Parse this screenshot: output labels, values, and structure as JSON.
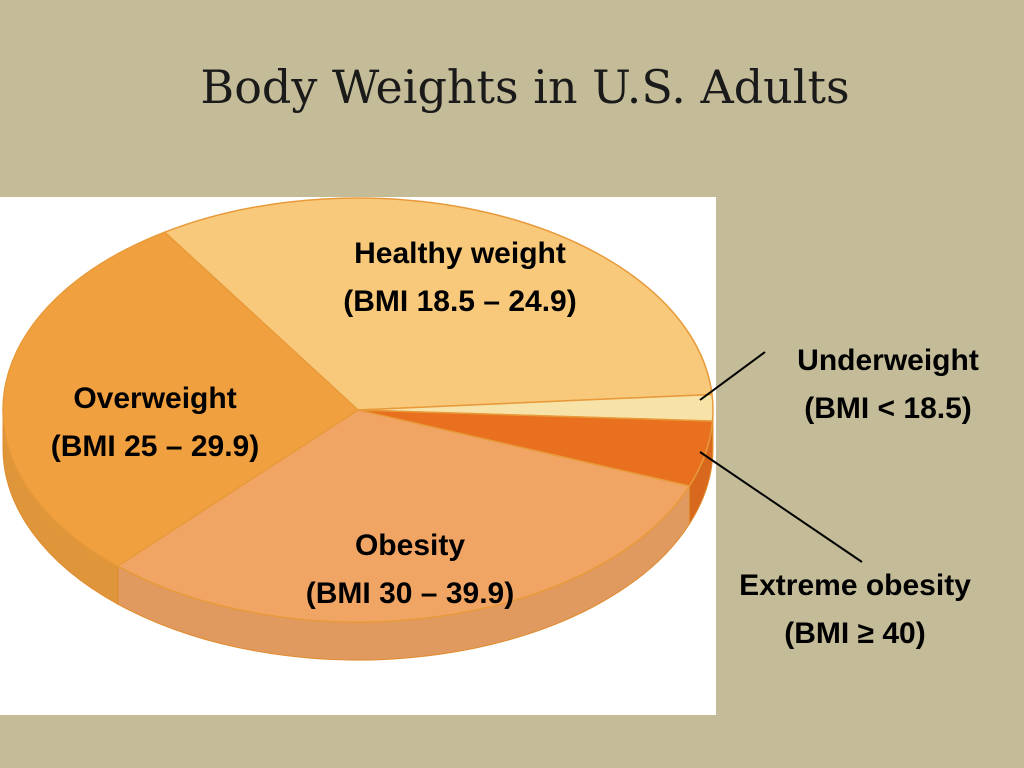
{
  "chart_data": {
    "type": "pie",
    "title": "Body Weights in U.S. Adults",
    "categories": [
      "Healthy weight",
      "Underweight",
      "Extreme obesity",
      "Obesity",
      "Overweight"
    ],
    "ranges": [
      "(BMI 18.5 – 24.9)",
      "(BMI < 18.5)",
      "(BMI ≥ 40)",
      "(BMI 30 – 39.9)",
      "(BMI 25 – 29.9)"
    ],
    "values": [
      33,
      2,
      5,
      31,
      29
    ],
    "colors": [
      "#f8c97a",
      "#f7e3a8",
      "#e8701f",
      "#f1a565",
      "#f0a03e"
    ]
  }
}
